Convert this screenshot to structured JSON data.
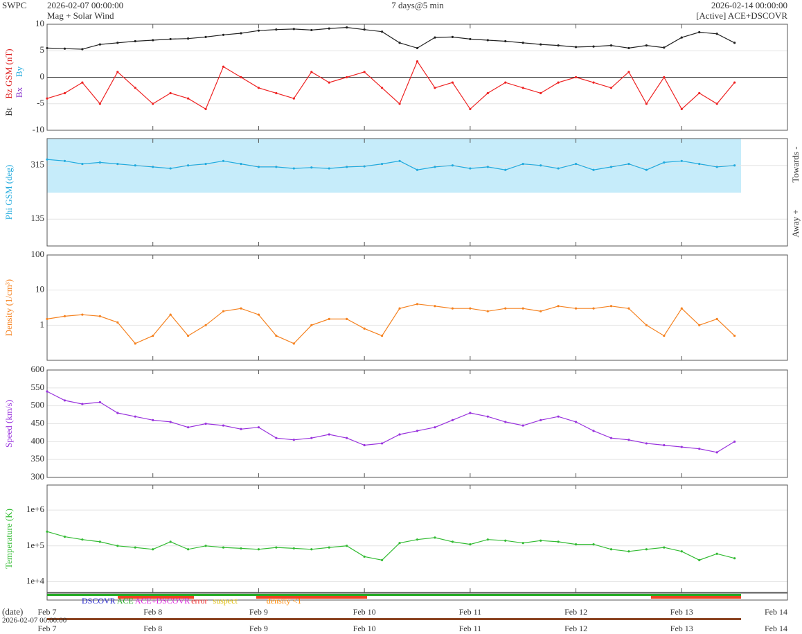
{
  "header": {
    "source": "SWPC",
    "start": "2026-02-07 00:00:00",
    "subtitle": "Mag + Solar Wind",
    "span": "7 days@5 min",
    "end": "2026-02-14 00:00:00",
    "status": "[Active] ACE+DSCOVR"
  },
  "status_legend": [
    {
      "label": "DSCOVR",
      "color": "#2222cc"
    },
    {
      "label": "ACE",
      "color": "#22aa22"
    },
    {
      "label": "ACE+DSCOVR",
      "color": "#dd22dd"
    },
    {
      "label": "error",
      "color": "#ee2222"
    },
    {
      "label": "suspect",
      "color": "#ddbb00"
    },
    {
      "label": "density <1",
      "color": "#ff8800"
    }
  ],
  "date_axis": {
    "label": "(date)",
    "start": "2026-02-07 00:00:00"
  },
  "chart_data": [
    {
      "type": "line",
      "ylabel": "Bz GSM (nT)",
      "ylabel_color": "#dd2222",
      "extra_labels": [
        {
          "label": "Bx",
          "color": "#8833cc"
        },
        {
          "label": "By",
          "color": "#22aadd"
        }
      ],
      "x": [
        0,
        4,
        8,
        12,
        16,
        20,
        24,
        28,
        32,
        36,
        40,
        44,
        48,
        52,
        56,
        60,
        64,
        68,
        72,
        76,
        80,
        84,
        88,
        92,
        96,
        100,
        104,
        108,
        112,
        116,
        120,
        124,
        128,
        132,
        136,
        140,
        144,
        148,
        152,
        156
      ],
      "xlim": [
        0,
        168
      ],
      "ylim": [
        -10,
        10
      ],
      "yticks": [
        -10,
        -5,
        0,
        5,
        10
      ],
      "zero_line": true,
      "log": false,
      "series": [
        {
          "name": "Bt",
          "color": "#222222",
          "values": [
            5.5,
            5.4,
            5.3,
            6.2,
            6.5,
            6.8,
            7.0,
            7.2,
            7.3,
            7.6,
            8.0,
            8.3,
            8.8,
            9.0,
            9.1,
            8.9,
            9.2,
            9.4,
            9.0,
            8.6,
            6.5,
            5.5,
            7.5,
            7.6,
            7.2,
            7.0,
            6.8,
            6.5,
            6.2,
            6.0,
            5.7,
            5.8,
            6.0,
            5.5,
            6.0,
            5.6,
            7.5,
            8.5,
            8.2,
            6.5
          ]
        },
        {
          "name": "Bz",
          "color": "#ee2222",
          "values": [
            -4,
            -3,
            -1,
            -5,
            1,
            -2,
            -5,
            -3,
            -4,
            -6,
            2,
            0,
            -2,
            -3,
            -4,
            1,
            -1,
            0,
            1,
            -2,
            -5,
            3,
            -2,
            -1,
            -6,
            -3,
            -1,
            -2,
            -3,
            -1,
            0,
            -1,
            -2,
            1,
            -5,
            0,
            -6,
            -3,
            -5,
            -1
          ]
        }
      ]
    },
    {
      "type": "line",
      "ylabel": "Phi GSM (deg)",
      "ylabel_color": "#22aadd",
      "side_labels": [
        "Towards -",
        "Away +"
      ],
      "x": [
        0,
        4,
        8,
        12,
        16,
        20,
        24,
        28,
        32,
        36,
        40,
        44,
        48,
        52,
        56,
        60,
        64,
        68,
        72,
        76,
        80,
        84,
        88,
        92,
        96,
        100,
        104,
        108,
        112,
        116,
        120,
        124,
        128,
        132,
        136,
        140,
        144,
        148,
        152,
        156
      ],
      "xlim": [
        0,
        168
      ],
      "ylim": [
        45,
        405
      ],
      "yticks": [
        135,
        315
      ],
      "log": false,
      "series": [
        {
          "name": "Phi",
          "color": "#22aadd",
          "values": [
            335,
            330,
            320,
            325,
            320,
            315,
            310,
            305,
            315,
            320,
            330,
            320,
            310,
            310,
            305,
            308,
            305,
            310,
            312,
            320,
            330,
            300,
            310,
            315,
            305,
            310,
            300,
            320,
            315,
            305,
            320,
            300,
            310,
            320,
            300,
            325,
            330,
            320,
            310,
            315
          ]
        }
      ]
    },
    {
      "type": "line",
      "ylabel": "Density (1/cm³)",
      "ylabel_color": "#f58220",
      "x": [
        0,
        4,
        8,
        12,
        16,
        20,
        24,
        28,
        32,
        36,
        40,
        44,
        48,
        52,
        56,
        60,
        64,
        68,
        72,
        76,
        80,
        84,
        88,
        92,
        96,
        100,
        104,
        108,
        112,
        116,
        120,
        124,
        128,
        132,
        136,
        140,
        144,
        148,
        152,
        156
      ],
      "xlim": [
        0,
        168
      ],
      "ylim": [
        0.1,
        100
      ],
      "yticks": [
        1,
        10,
        100
      ],
      "log": true,
      "series": [
        {
          "name": "Density",
          "color": "#f58220",
          "values": [
            1.5,
            1.8,
            2,
            1.8,
            1.2,
            0.3,
            0.5,
            2,
            0.5,
            1,
            2.5,
            3,
            2,
            0.5,
            0.3,
            1,
            1.5,
            1.5,
            0.8,
            0.5,
            3,
            4,
            3.5,
            3,
            3,
            2.5,
            3,
            3,
            2.5,
            3.5,
            3,
            3,
            3.5,
            3,
            1,
            0.5,
            3,
            1,
            1.5,
            0.5
          ]
        }
      ]
    },
    {
      "type": "line",
      "ylabel": "Speed (km/s)",
      "ylabel_color": "#9933dd",
      "x": [
        0,
        4,
        8,
        12,
        16,
        20,
        24,
        28,
        32,
        36,
        40,
        44,
        48,
        52,
        56,
        60,
        64,
        68,
        72,
        76,
        80,
        84,
        88,
        92,
        96,
        100,
        104,
        108,
        112,
        116,
        120,
        124,
        128,
        132,
        136,
        140,
        144,
        148,
        152,
        156
      ],
      "xlim": [
        0,
        168
      ],
      "ylim": [
        300,
        600
      ],
      "yticks": [
        300,
        350,
        400,
        450,
        500,
        550,
        600
      ],
      "log": false,
      "series": [
        {
          "name": "Speed",
          "color": "#9933dd",
          "values": [
            540,
            515,
            505,
            510,
            480,
            470,
            460,
            455,
            440,
            450,
            445,
            435,
            440,
            410,
            405,
            410,
            420,
            410,
            390,
            395,
            420,
            430,
            440,
            460,
            480,
            470,
            455,
            445,
            460,
            470,
            455,
            430,
            410,
            405,
            395,
            390,
            385,
            380,
            370,
            400
          ]
        }
      ]
    },
    {
      "type": "line",
      "ylabel": "Temperature (K)",
      "ylabel_color": "#33bb33",
      "x": [
        0,
        4,
        8,
        12,
        16,
        20,
        24,
        28,
        32,
        36,
        40,
        44,
        48,
        52,
        56,
        60,
        64,
        68,
        72,
        76,
        80,
        84,
        88,
        92,
        96,
        100,
        104,
        108,
        112,
        116,
        120,
        124,
        128,
        132,
        136,
        140,
        144,
        148,
        152,
        156
      ],
      "xlim": [
        0,
        168
      ],
      "ylim": [
        5000,
        5000000
      ],
      "log": true,
      "yticks": [
        {
          "value": 10000,
          "label": "1e+4"
        },
        {
          "value": 100000,
          "label": "1e+5"
        },
        {
          "value": 1000000,
          "label": "1e+6"
        }
      ],
      "xticks": [
        {
          "value": 0,
          "label": "Feb 7"
        },
        {
          "value": 24,
          "label": "Feb 8"
        },
        {
          "value": 48,
          "label": "Feb 9"
        },
        {
          "value": 72,
          "label": "Feb 10"
        },
        {
          "value": 96,
          "label": "Feb 11"
        },
        {
          "value": 120,
          "label": "Feb 12"
        },
        {
          "value": 144,
          "label": "Feb 13"
        },
        {
          "value": 168,
          "label": "Feb 14"
        }
      ],
      "series": [
        {
          "name": "Temperature",
          "color": "#33bb33",
          "values": [
            250000,
            180000,
            150000,
            130000,
            100000,
            90000,
            80000,
            130000,
            80000,
            100000,
            90000,
            85000,
            80000,
            90000,
            85000,
            80000,
            90000,
            100000,
            50000,
            40000,
            120000,
            150000,
            170000,
            130000,
            110000,
            150000,
            140000,
            120000,
            140000,
            130000,
            110000,
            110000,
            80000,
            70000,
            80000,
            90000,
            70000,
            40000,
            60000,
            45000
          ]
        }
      ]
    }
  ]
}
